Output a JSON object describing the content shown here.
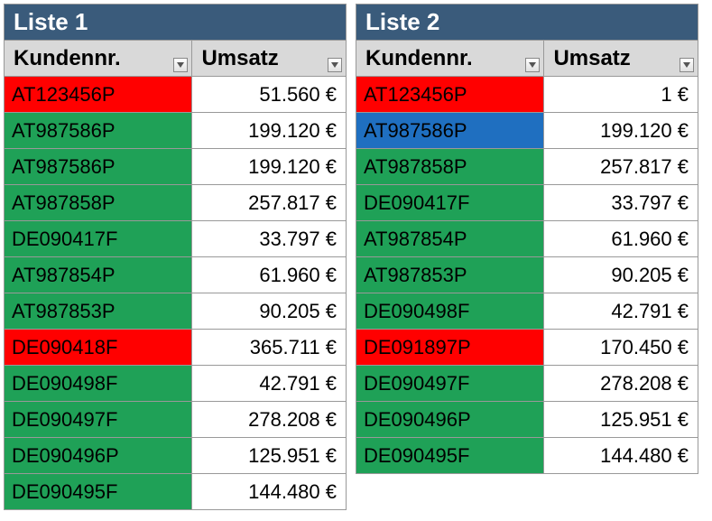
{
  "colors": {
    "title_bg": "#3a5b7b",
    "header_bg": "#d9d9d9",
    "green": "#1fa157",
    "red": "#ff0000",
    "blue": "#1f6fc0",
    "border": "#999999",
    "white": "#ffffff",
    "black": "#000000"
  },
  "lists": [
    {
      "title": "Liste 1",
      "col1": "Kundennr.",
      "col2": "Umsatz",
      "rows": [
        {
          "id": "AT123456P",
          "val": "51.560 €",
          "bg": "red"
        },
        {
          "id": "AT987586P",
          "val": "199.120 €",
          "bg": "green"
        },
        {
          "id": "AT987586P",
          "val": "199.120 €",
          "bg": "green"
        },
        {
          "id": "AT987858P",
          "val": "257.817 €",
          "bg": "green"
        },
        {
          "id": "DE090417F",
          "val": "33.797 €",
          "bg": "green"
        },
        {
          "id": "AT987854P",
          "val": "61.960 €",
          "bg": "green"
        },
        {
          "id": "AT987853P",
          "val": "90.205 €",
          "bg": "green"
        },
        {
          "id": "DE090418F",
          "val": "365.711 €",
          "bg": "red"
        },
        {
          "id": "DE090498F",
          "val": "42.791 €",
          "bg": "green"
        },
        {
          "id": "DE090497F",
          "val": "278.208 €",
          "bg": "green"
        },
        {
          "id": "DE090496P",
          "val": "125.951 €",
          "bg": "green"
        },
        {
          "id": "DE090495F",
          "val": "144.480 €",
          "bg": "green"
        }
      ]
    },
    {
      "title": "Liste 2",
      "col1": "Kundennr.",
      "col2": "Umsatz",
      "rows": [
        {
          "id": "AT123456P",
          "val": "1 €",
          "bg": "red"
        },
        {
          "id": "AT987586P",
          "val": "199.120 €",
          "bg": "blue"
        },
        {
          "id": "AT987858P",
          "val": "257.817 €",
          "bg": "green"
        },
        {
          "id": "DE090417F",
          "val": "33.797 €",
          "bg": "green"
        },
        {
          "id": "AT987854P",
          "val": "61.960 €",
          "bg": "green"
        },
        {
          "id": "AT987853P",
          "val": "90.205 €",
          "bg": "green"
        },
        {
          "id": "DE090498F",
          "val": "42.791 €",
          "bg": "green"
        },
        {
          "id": "DE091897P",
          "val": "170.450 €",
          "bg": "red"
        },
        {
          "id": "DE090497F",
          "val": "278.208 €",
          "bg": "green"
        },
        {
          "id": "DE090496P",
          "val": "125.951 €",
          "bg": "green"
        },
        {
          "id": "DE090495F",
          "val": "144.480 €",
          "bg": "green"
        }
      ]
    }
  ]
}
